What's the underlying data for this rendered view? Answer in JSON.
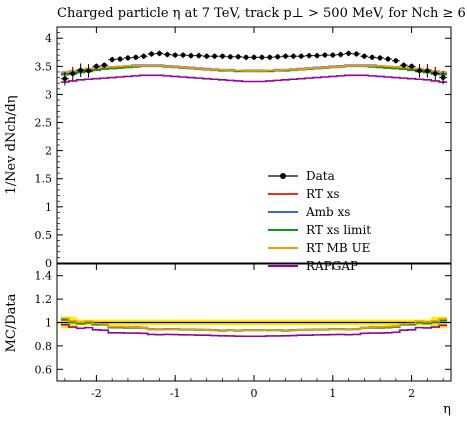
{
  "chart_data": [
    {
      "type": "line",
      "title": "Charged particle η at 7 TeV, track p⊥ > 500 MeV, for Nch ≥ 6",
      "ylabel": "1/Nev dNch/dη",
      "xlim": [
        -2.5,
        2.5
      ],
      "ylim": [
        0,
        4.2
      ],
      "yticks": [
        0,
        0.5,
        1,
        1.5,
        2,
        2.5,
        3,
        3.5,
        4
      ],
      "x": [
        -2.4,
        -2.3,
        -2.2,
        -2.1,
        -2.0,
        -1.9,
        -1.8,
        -1.7,
        -1.6,
        -1.5,
        -1.4,
        -1.3,
        -1.2,
        -1.1,
        -1.0,
        -0.9,
        -0.8,
        -0.7,
        -0.6,
        -0.5,
        -0.4,
        -0.3,
        -0.2,
        -0.1,
        0.0,
        0.1,
        0.2,
        0.3,
        0.4,
        0.5,
        0.6,
        0.7,
        0.8,
        0.9,
        1.0,
        1.1,
        1.2,
        1.3,
        1.4,
        1.5,
        1.6,
        1.7,
        1.8,
        1.9,
        2.0,
        2.1,
        2.2,
        2.3,
        2.4
      ],
      "series": [
        {
          "name": "Data",
          "color": "#000000",
          "marker": "point",
          "values": [
            3.28,
            3.37,
            3.43,
            3.42,
            3.5,
            3.52,
            3.62,
            3.63,
            3.65,
            3.66,
            3.68,
            3.72,
            3.73,
            3.71,
            3.7,
            3.7,
            3.69,
            3.69,
            3.68,
            3.68,
            3.68,
            3.67,
            3.67,
            3.66,
            3.66,
            3.66,
            3.66,
            3.67,
            3.68,
            3.68,
            3.68,
            3.69,
            3.69,
            3.7,
            3.7,
            3.71,
            3.73,
            3.72,
            3.68,
            3.66,
            3.65,
            3.63,
            3.6,
            3.52,
            3.5,
            3.42,
            3.42,
            3.37,
            3.3
          ]
        },
        {
          "name": "RT xs",
          "color": "#ee3311",
          "values": [
            3.36,
            3.38,
            3.4,
            3.42,
            3.44,
            3.46,
            3.47,
            3.48,
            3.49,
            3.5,
            3.51,
            3.51,
            3.51,
            3.5,
            3.49,
            3.48,
            3.47,
            3.46,
            3.45,
            3.44,
            3.43,
            3.43,
            3.42,
            3.42,
            3.42,
            3.42,
            3.42,
            3.43,
            3.43,
            3.44,
            3.45,
            3.46,
            3.47,
            3.48,
            3.49,
            3.5,
            3.51,
            3.51,
            3.51,
            3.5,
            3.49,
            3.48,
            3.47,
            3.46,
            3.44,
            3.42,
            3.4,
            3.38,
            3.36
          ]
        },
        {
          "name": "Amb xs",
          "color": "#3366ee",
          "values": [
            3.38,
            3.4,
            3.42,
            3.44,
            3.46,
            3.48,
            3.49,
            3.5,
            3.51,
            3.52,
            3.52,
            3.52,
            3.52,
            3.51,
            3.5,
            3.49,
            3.48,
            3.47,
            3.46,
            3.45,
            3.44,
            3.44,
            3.43,
            3.43,
            3.43,
            3.43,
            3.43,
            3.44,
            3.44,
            3.45,
            3.46,
            3.47,
            3.48,
            3.49,
            3.5,
            3.51,
            3.52,
            3.52,
            3.52,
            3.52,
            3.51,
            3.5,
            3.49,
            3.48,
            3.46,
            3.44,
            3.42,
            3.4,
            3.38
          ]
        },
        {
          "name": "RT xs limit",
          "color": "#109618",
          "values": [
            3.35,
            3.37,
            3.39,
            3.41,
            3.43,
            3.45,
            3.46,
            3.47,
            3.48,
            3.49,
            3.5,
            3.5,
            3.5,
            3.49,
            3.48,
            3.47,
            3.46,
            3.45,
            3.44,
            3.43,
            3.42,
            3.42,
            3.41,
            3.41,
            3.41,
            3.41,
            3.41,
            3.42,
            3.42,
            3.43,
            3.44,
            3.45,
            3.46,
            3.47,
            3.48,
            3.49,
            3.5,
            3.5,
            3.5,
            3.49,
            3.48,
            3.47,
            3.46,
            3.45,
            3.43,
            3.41,
            3.39,
            3.37,
            3.35
          ]
        },
        {
          "name": "RT MB UE",
          "color": "#ff9900",
          "values": [
            3.4,
            3.42,
            3.44,
            3.46,
            3.47,
            3.48,
            3.49,
            3.5,
            3.51,
            3.51,
            3.51,
            3.51,
            3.51,
            3.5,
            3.49,
            3.48,
            3.47,
            3.46,
            3.45,
            3.44,
            3.44,
            3.43,
            3.43,
            3.42,
            3.42,
            3.42,
            3.43,
            3.43,
            3.44,
            3.44,
            3.45,
            3.46,
            3.47,
            3.48,
            3.49,
            3.5,
            3.51,
            3.51,
            3.51,
            3.51,
            3.51,
            3.5,
            3.49,
            3.48,
            3.47,
            3.46,
            3.44,
            3.42,
            3.4
          ]
        },
        {
          "name": "RAPGAP",
          "color": "#990099",
          "values": [
            3.22,
            3.24,
            3.26,
            3.27,
            3.28,
            3.29,
            3.3,
            3.31,
            3.32,
            3.33,
            3.34,
            3.34,
            3.34,
            3.33,
            3.32,
            3.31,
            3.3,
            3.29,
            3.28,
            3.27,
            3.26,
            3.25,
            3.24,
            3.23,
            3.23,
            3.23,
            3.24,
            3.25,
            3.26,
            3.27,
            3.28,
            3.29,
            3.3,
            3.31,
            3.32,
            3.33,
            3.34,
            3.34,
            3.34,
            3.33,
            3.32,
            3.31,
            3.3,
            3.29,
            3.28,
            3.27,
            3.26,
            3.24,
            3.22
          ]
        }
      ],
      "error_bars": true,
      "legend_placement": "bottom-center"
    },
    {
      "type": "line",
      "ylabel": "MC/Data",
      "xlabel": "η",
      "xlim": [
        -2.5,
        2.5
      ],
      "ylim": [
        0.5,
        1.5
      ],
      "yticks": [
        0.6,
        0.8,
        1,
        1.2,
        1.4
      ],
      "xticks": [
        -2,
        -1,
        0,
        1,
        2
      ],
      "reference_line": 1.0,
      "band_color": "#ffee00"
    }
  ]
}
